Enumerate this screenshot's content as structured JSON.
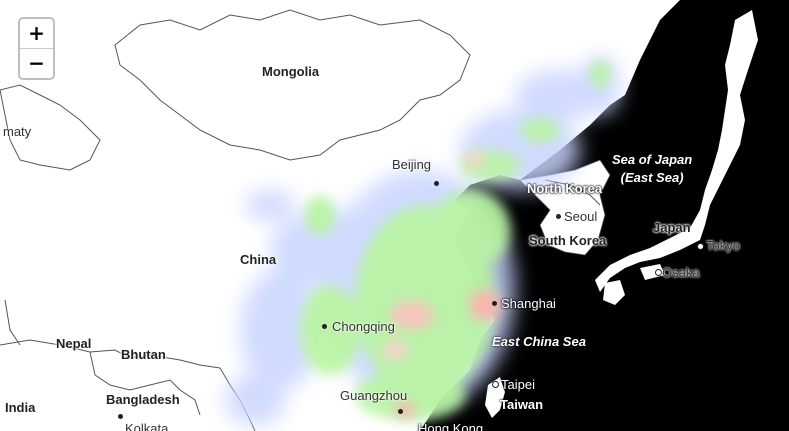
{
  "zoom": {
    "in_label": "+",
    "out_label": "−"
  },
  "labels": {
    "mongolia": "Mongolia",
    "china": "China",
    "beijing": "Beijing",
    "chongqing": "Chongqing",
    "shanghai": "Shanghai",
    "guangzhou": "Guangzhou",
    "hong_kong": "Hong Kong",
    "north_korea": "North Korea",
    "seoul": "Seoul",
    "south_korea": "South Korea",
    "japan": "Japan",
    "tokyo": "Tokyo",
    "osaka": "Osaka",
    "sea_of_japan": "Sea of Japan",
    "east_sea": "(East Sea)",
    "east_china_sea": "East China Sea",
    "taipei": "Taipei",
    "taiwan": "Taiwan",
    "nepal": "Nepal",
    "bhutan": "Bhutan",
    "bangladesh": "Bangladesh",
    "india": "India",
    "kolkata": "Kolkata",
    "almaty_partial": "maty"
  },
  "colors": {
    "sea": "#000000",
    "land": "#ffffff",
    "border": "#555555",
    "heat_low": "#c8c8ff",
    "heat_mid": "#b8f5a0",
    "heat_high": "#ffb0b0"
  }
}
